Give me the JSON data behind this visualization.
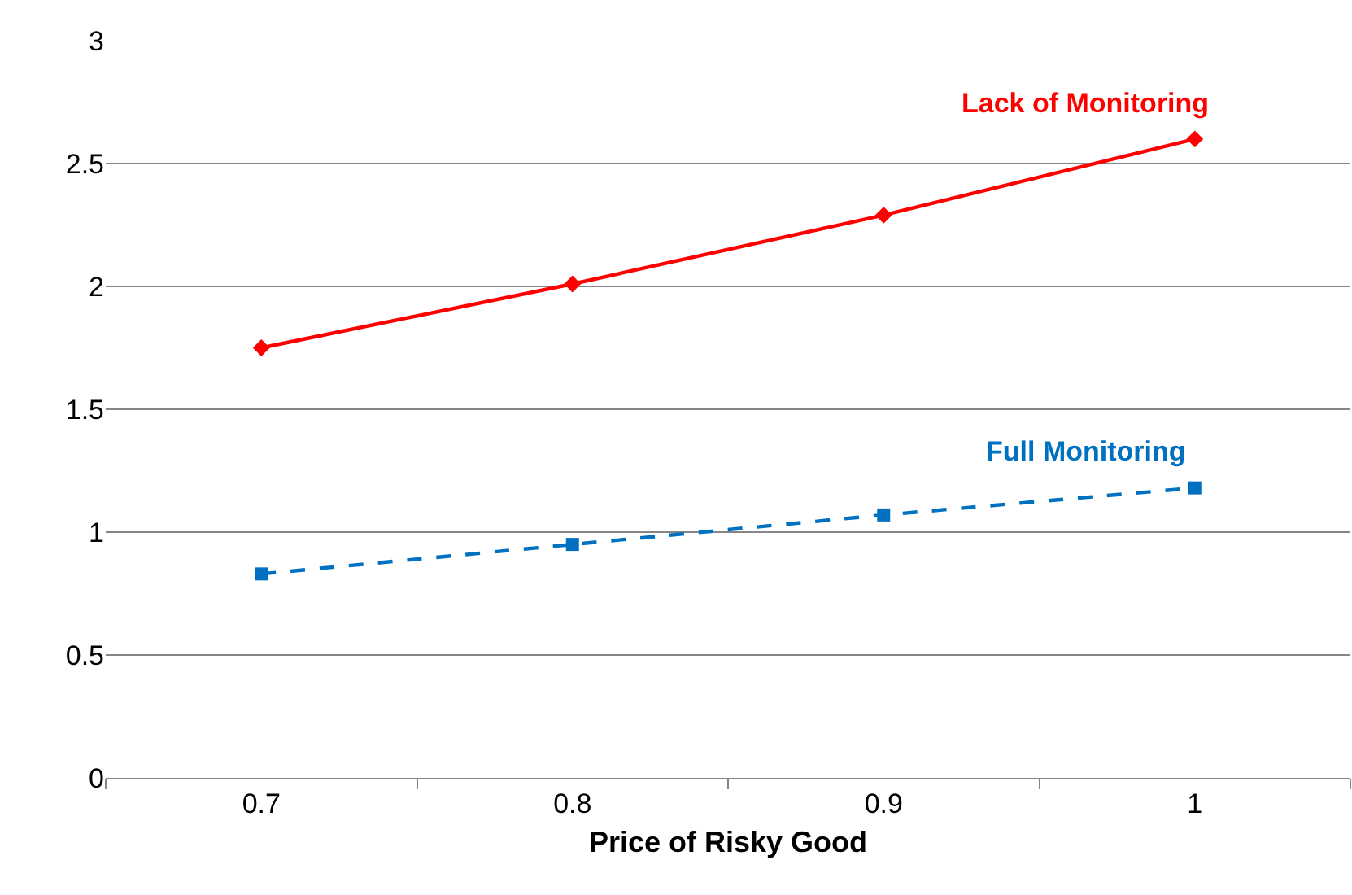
{
  "chart_data": {
    "type": "line",
    "xlabel": "Price of Risky Good",
    "categories": [
      "0.7",
      "0.8",
      "0.9",
      "1"
    ],
    "ylim": [
      0,
      3
    ],
    "yticks": [
      0,
      0.5,
      1,
      1.5,
      2,
      2.5,
      3
    ],
    "grid": "y",
    "legend": false,
    "series": [
      {
        "name": "Lack of Monitoring",
        "color": "#ff0000",
        "marker": "diamond",
        "line_style": "solid",
        "values": [
          1.75,
          2.01,
          2.29,
          2.6
        ]
      },
      {
        "name": "Full Monitoring",
        "color": "#0070c0",
        "marker": "square",
        "line_style": "dashed",
        "values": [
          0.83,
          0.95,
          1.07,
          1.18
        ]
      }
    ]
  }
}
